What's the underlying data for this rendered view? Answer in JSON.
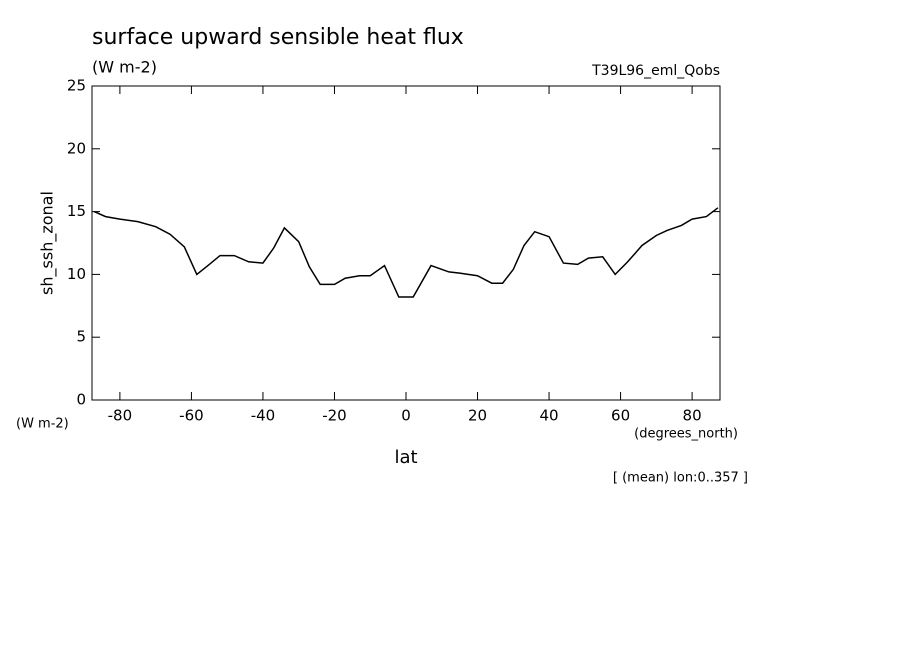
{
  "chart_data": {
    "type": "line",
    "title": "surface upward sensible heat flux",
    "units": "(W m-2)",
    "dataset": "T39L96_eml_Qobs",
    "y_label": "sh_ssh_zonal",
    "y_units": "(W m-2)",
    "x_label": "lat",
    "x_units": "(degrees_north)",
    "note": "[ (mean) lon:0..357 ]",
    "color": "#000000",
    "x": [
      -87.2,
      -84,
      -80,
      -75,
      -70,
      -66,
      -62,
      -58.5,
      -55,
      -52,
      -48,
      -44,
      -40,
      -37,
      -34,
      -30,
      -27,
      -24,
      -20,
      -17,
      -13,
      -10,
      -6,
      -2,
      2,
      7,
      12,
      15,
      20,
      24,
      27,
      30,
      33,
      36,
      40,
      44,
      48,
      51,
      55,
      58.5,
      62,
      66,
      70,
      73,
      77,
      80,
      84,
      87.2
    ],
    "values": [
      15.0,
      14.6,
      14.4,
      14.2,
      13.8,
      13.2,
      12.2,
      10.0,
      10.8,
      11.5,
      11.5,
      11.0,
      10.9,
      12.1,
      13.7,
      12.6,
      10.6,
      9.2,
      9.2,
      9.7,
      9.9,
      9.9,
      10.7,
      8.2,
      8.2,
      10.7,
      10.2,
      10.1,
      9.9,
      9.3,
      9.3,
      10.4,
      12.3,
      13.4,
      13.0,
      10.9,
      10.8,
      11.3,
      11.4,
      10.0,
      11.0,
      12.3,
      13.1,
      13.5,
      13.9,
      14.4,
      14.6,
      15.3
    ],
    "xlim": [
      -87.8,
      87.8
    ],
    "ylim": [
      0,
      25
    ],
    "xticks": [
      -80,
      -60,
      -40,
      -20,
      0,
      20,
      40,
      60,
      80
    ],
    "yticks": [
      0,
      5,
      10,
      15,
      20,
      25
    ]
  }
}
